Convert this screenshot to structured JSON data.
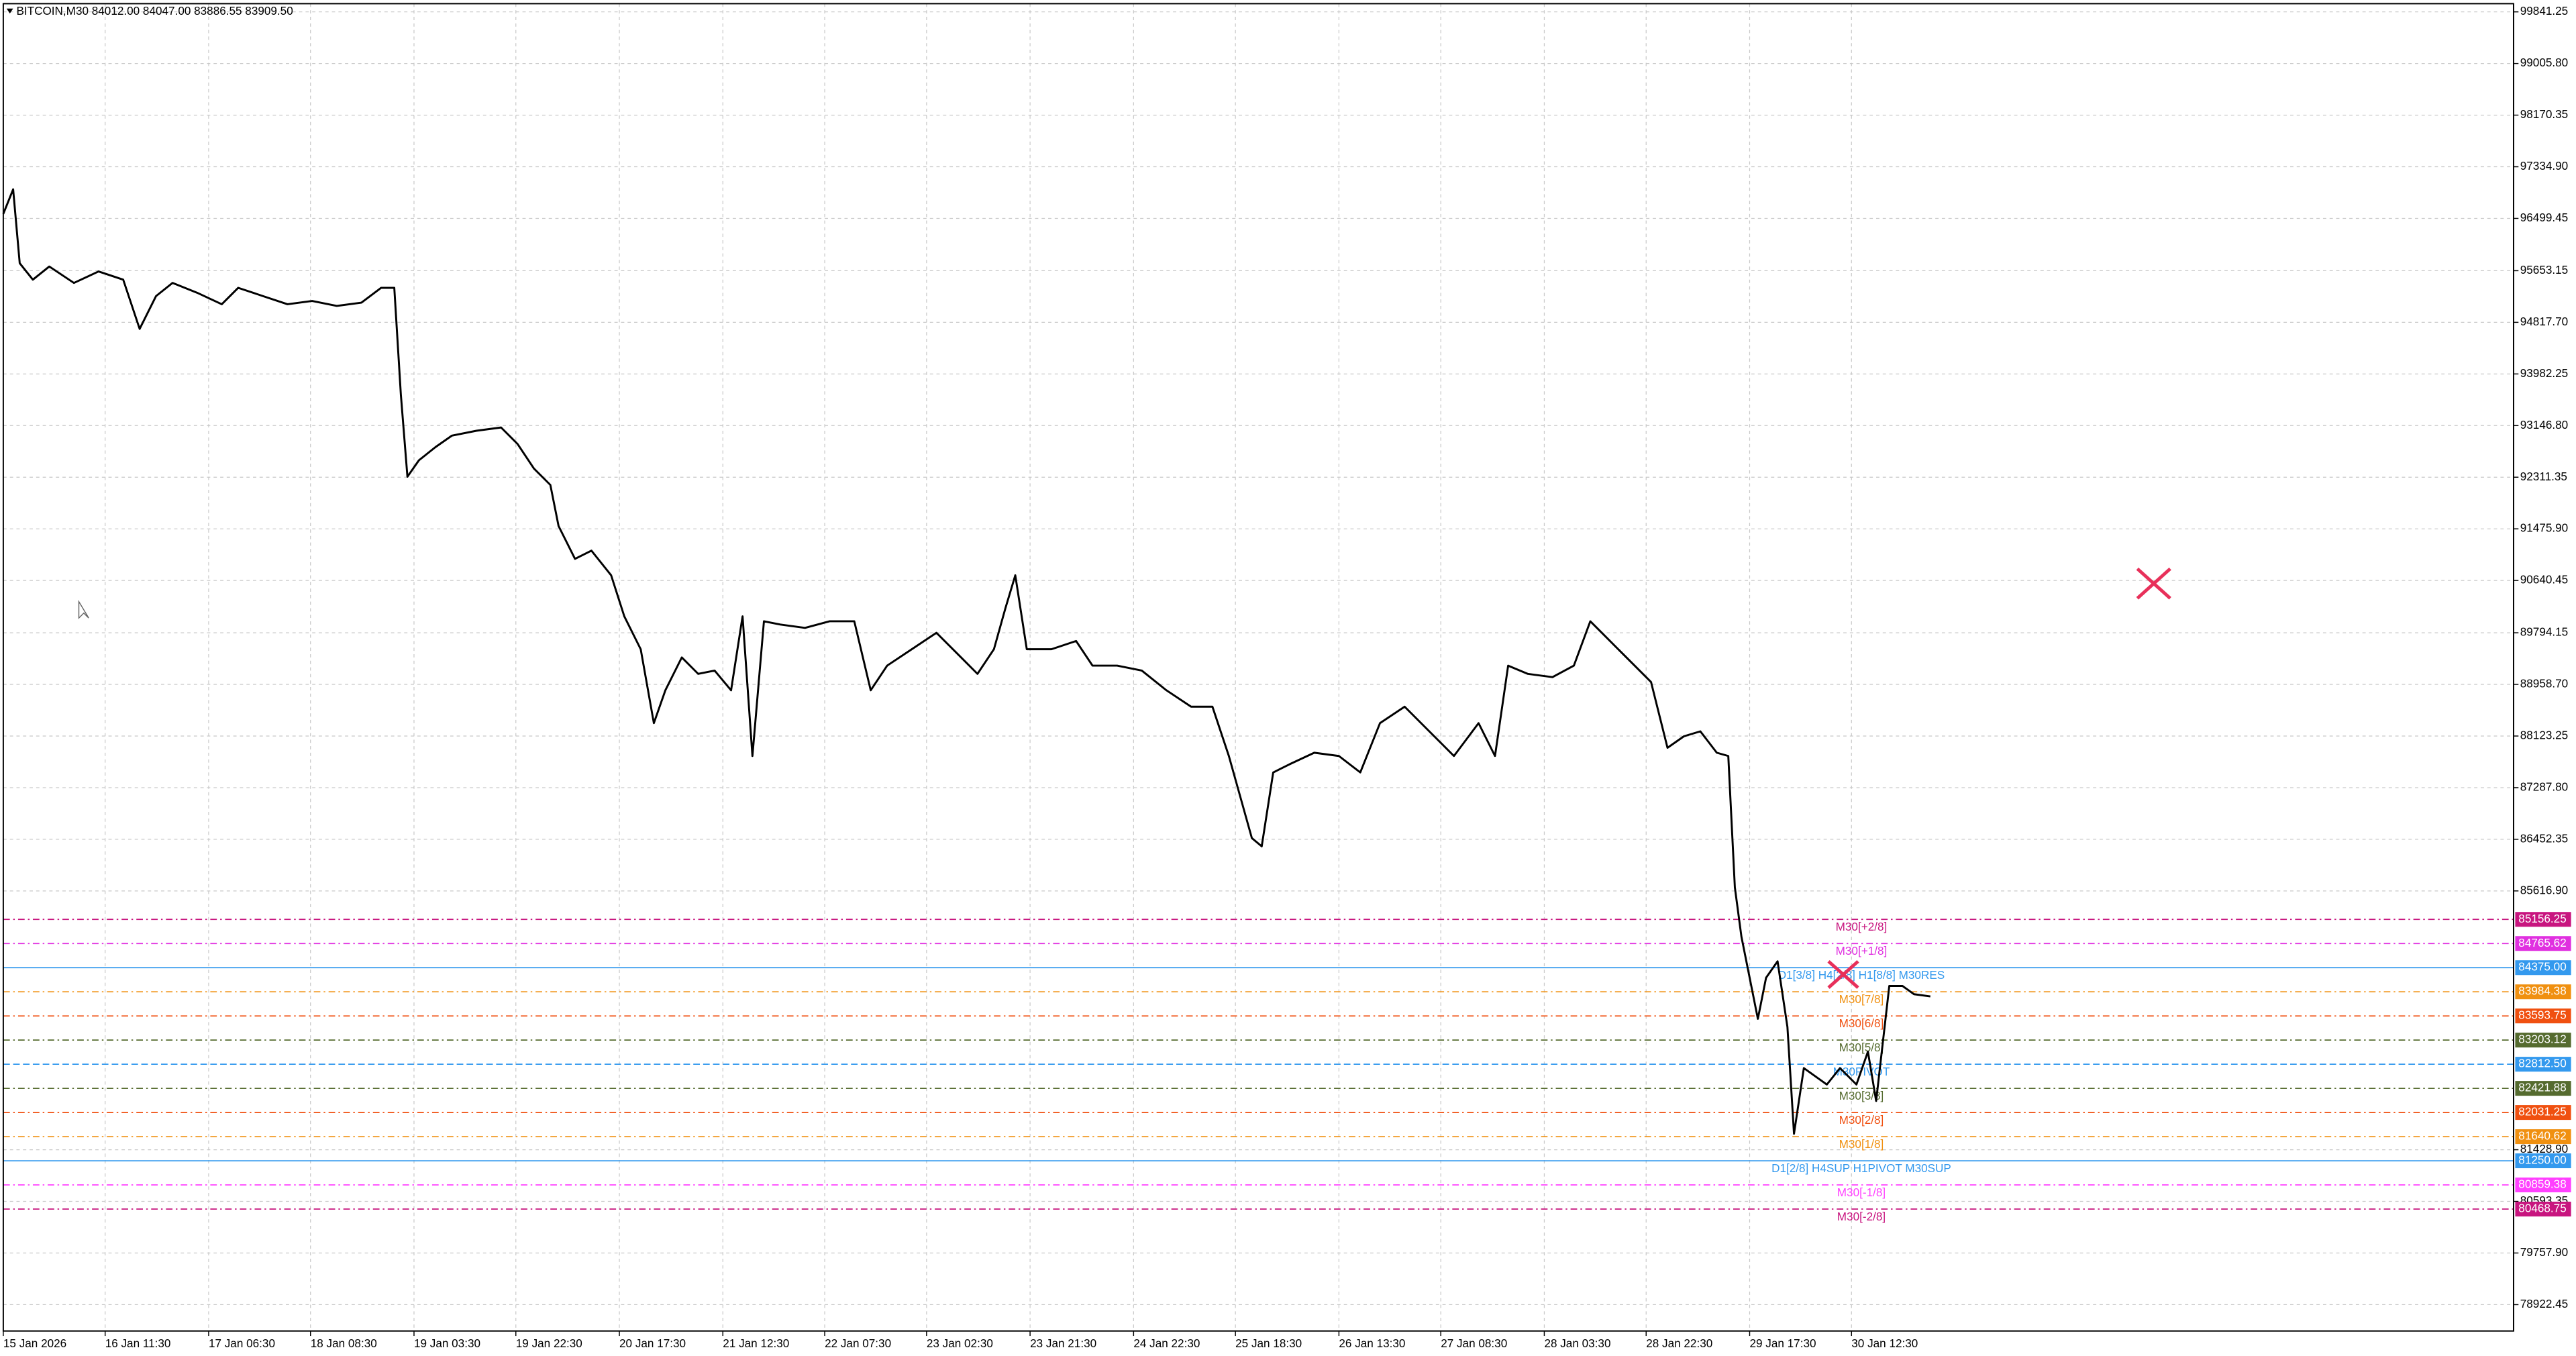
{
  "chart_data": {
    "type": "line",
    "title": "BITCOIN,M30  84012.00 84047.00 83886.55 83909.50",
    "color": "#000000",
    "grid": true,
    "xlim": [
      0,
      1528
    ],
    "ylim": [
      78496,
      99974
    ],
    "xticks": [
      {
        "value": 0,
        "label": "15 Jan 2026"
      },
      {
        "value": 62,
        "label": "16 Jan 11:30"
      },
      {
        "value": 125,
        "label": "17 Jan 06:30"
      },
      {
        "value": 187,
        "label": "18 Jan 08:30"
      },
      {
        "value": 250,
        "label": "19 Jan 03:30"
      },
      {
        "value": 312,
        "label": "19 Jan 22:30"
      },
      {
        "value": 375,
        "label": "20 Jan 17:30"
      },
      {
        "value": 438,
        "label": "21 Jan 12:30"
      },
      {
        "value": 500,
        "label": "22 Jan 07:30"
      },
      {
        "value": 562,
        "label": "23 Jan 02:30"
      },
      {
        "value": 625,
        "label": "23 Jan 21:30"
      },
      {
        "value": 688,
        "label": "24 Jan 22:30"
      },
      {
        "value": 750,
        "label": "25 Jan 18:30"
      },
      {
        "value": 813,
        "label": "26 Jan 13:30"
      },
      {
        "value": 875,
        "label": "27 Jan 08:30"
      },
      {
        "value": 938,
        "label": "28 Jan 03:30"
      },
      {
        "value": 1000,
        "label": "28 Jan 22:30"
      },
      {
        "value": 1063,
        "label": "29 Jan 17:30"
      },
      {
        "value": 1125,
        "label": "30 Jan 12:30"
      }
    ],
    "yticks": [
      99841.25,
      {
        "value": 99005.8,
        "label": "99005.80"
      },
      98170.35,
      {
        "value": 97334.9,
        "label": "97334.90"
      },
      96499.45,
      95653.15,
      {
        "value": 94817.7,
        "label": "94817.70"
      },
      93982.25,
      {
        "value": 93146.8,
        "label": "93146.80"
      },
      92311.35,
      {
        "value": 91475.9,
        "label": "91475.90"
      },
      90640.45,
      89794.15,
      {
        "value": 88958.7,
        "label": "88958.70"
      },
      88123.25,
      {
        "value": 87287.8,
        "label": "87287.80"
      },
      86452.35,
      {
        "value": 85616.9,
        "label": "85616.90"
      },
      {
        "value": 81428.9,
        "label": "81428.90"
      },
      80593.35,
      {
        "value": 79757.9,
        "label": "79757.90"
      },
      78922.45
    ],
    "x": [
      0,
      6,
      10,
      18,
      28,
      43,
      58,
      73,
      83,
      93,
      103,
      118,
      133,
      143,
      158,
      173,
      188,
      203,
      218,
      230,
      238,
      242,
      246,
      253,
      263,
      273,
      288,
      303,
      313,
      323,
      333,
      338,
      348,
      358,
      370,
      378,
      388,
      396,
      403,
      413,
      423,
      433,
      443,
      450,
      456,
      463,
      473,
      488,
      503,
      518,
      528,
      538,
      553,
      568,
      583,
      593,
      603,
      610,
      616,
      623,
      638,
      653,
      663,
      678,
      693,
      708,
      723,
      736,
      746,
      753,
      760,
      766,
      773,
      783,
      798,
      813,
      826,
      838,
      853,
      868,
      883,
      898,
      908,
      916,
      928,
      943,
      956,
      966,
      973,
      983,
      993,
      1003,
      1013,
      1023,
      1033,
      1043,
      1050,
      1054,
      1058,
      1063,
      1068,
      1073,
      1080,
      1086,
      1090,
      1096,
      1103,
      1110,
      1118,
      1128,
      1135,
      1140,
      1144,
      1148,
      1156,
      1163,
      1173
    ],
    "values": [
      96572,
      96970,
      95774,
      95508,
      95721,
      95455,
      95641,
      95508,
      94711,
      95243,
      95455,
      95296,
      95110,
      95376,
      95243,
      95110,
      95163,
      95083,
      95136,
      95376,
      95376,
      93648,
      92319,
      92585,
      92797,
      92983,
      93063,
      93116,
      92850,
      92452,
      92186,
      91521,
      90990,
      91123,
      90724,
      90060,
      89528,
      88332,
      88863,
      89395,
      89129,
      89182,
      88863,
      90060,
      87800,
      89980,
      89927,
      89873,
      89980,
      89980,
      88863,
      89262,
      89528,
      89794,
      89395,
      89129,
      89528,
      90192,
      90724,
      89528,
      89528,
      89661,
      89262,
      89262,
      89182,
      88863,
      88598,
      88598,
      87800,
      87136,
      86471,
      86338,
      87534,
      87667,
      87853,
      87800,
      87534,
      88332,
      88598,
      88199,
      87800,
      88332,
      87800,
      89262,
      89129,
      89076,
      89262,
      89980,
      89794,
      89528,
      89262,
      88996,
      87933,
      88119,
      88199,
      87853,
      87800,
      85674,
      84876,
      84212,
      83547,
      84212,
      84478,
      83415,
      81687,
      82750,
      82617,
      82484,
      82750,
      82484,
      83016,
      82218,
      83149,
      84079,
      84079,
      83946,
      83910
    ],
    "levels": [
      {
        "value": 85156.25,
        "value_label": "85156.25",
        "label": "M30[+2/8]",
        "color": "#c8157f",
        "style": "dashdot"
      },
      {
        "value": 84765.62,
        "value_label": "84765.62",
        "label": "M30[+1/8]",
        "color": "#e030e0",
        "style": "dashdot"
      },
      {
        "value": 84375,
        "value_label": "84375.00",
        "label": "D1[3/8] H4[2/8] H1[8/8] M30RES",
        "color": "#3399ee",
        "style": "solid"
      },
      {
        "value": 83984.38,
        "value_label": "83984.38",
        "label": "M30[7/8]",
        "color": "#f09010",
        "style": "dashdot"
      },
      {
        "value": 83593.75,
        "value_label": "83593.75",
        "label": "M30[6/8]",
        "color": "#f05010",
        "style": "dashdot"
      },
      {
        "value": 83203.12,
        "value_label": "83203.12",
        "label": "M30[5/8]",
        "color": "#556b2f",
        "style": "dashdot"
      },
      {
        "value": 82812.5,
        "value_label": "82812.50",
        "label": "M30PIVOT",
        "color": "#3399ee",
        "style": "dashed"
      },
      {
        "value": 82421.88,
        "value_label": "82421.88",
        "label": "M30[3/8]",
        "color": "#556b2f",
        "style": "dashdot"
      },
      {
        "value": 82031.25,
        "value_label": "82031.25",
        "label": "M30[2/8]",
        "color": "#f05010",
        "style": "dashdot"
      },
      {
        "value": 81640.62,
        "value_label": "81640.62",
        "label": "M30[1/8]",
        "color": "#f09010",
        "style": "dashdot"
      },
      {
        "value": 81250,
        "value_label": "81250.00",
        "label": "D1[2/8] H4SUP H1PIVOT M30SUP",
        "color": "#3399ee",
        "style": "solid"
      },
      {
        "value": 80859.38,
        "value_label": "80859.38",
        "label": "M30[-1/8]",
        "color": "#ff40ff",
        "style": "dashdot"
      },
      {
        "value": 80468.75,
        "value_label": "80468.75",
        "label": "M30[-2/8]",
        "color": "#c8157f",
        "style": "dashdot"
      }
    ]
  }
}
